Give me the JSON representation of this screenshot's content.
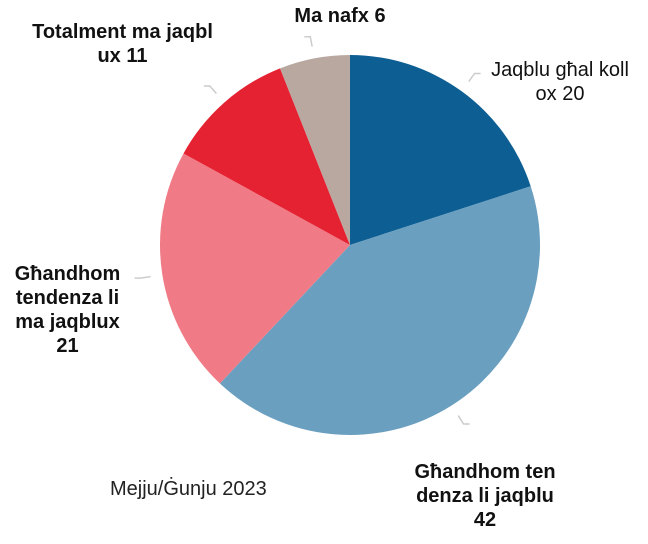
{
  "chart_data": {
    "type": "pie",
    "categories": [
      "Jaqblu għal kollox",
      "Għandhom tendenza li jaqblu",
      "Għandhom tendenza li ma jaqblux",
      "Totalment ma jaqblux",
      "Ma nafx"
    ],
    "values": [
      20,
      42,
      21,
      11,
      6
    ],
    "colors": [
      "#0d5f93",
      "#6a9fc0",
      "#f07b86",
      "#e52232",
      "#b8a8a0"
    ],
    "note": "Mejju/Ġunju 2023"
  }
}
